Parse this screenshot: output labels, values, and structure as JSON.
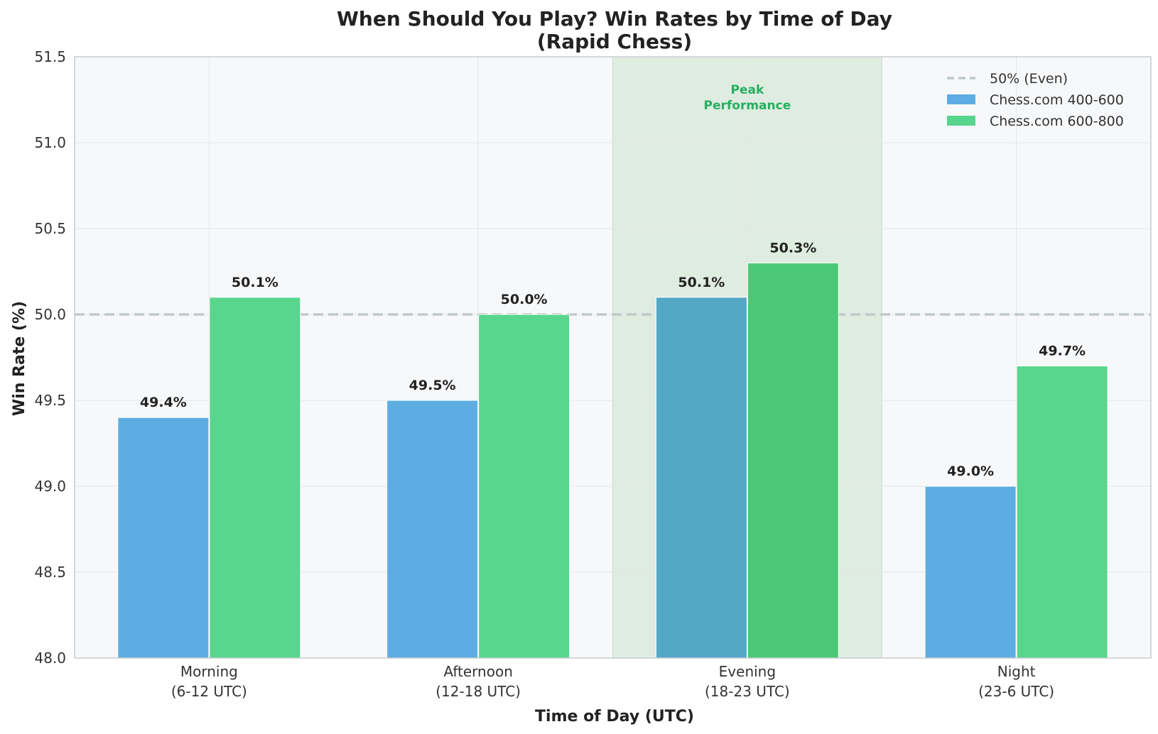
{
  "chart_data": {
    "type": "bar",
    "title": "When Should You Play? Win Rates by Time of Day",
    "subtitle": "(Rapid Chess)",
    "xlabel": "Time of Day (UTC)",
    "ylabel": "Win Rate (%)",
    "ylim": [
      48.0,
      51.5
    ],
    "yticks": [
      "48.0",
      "48.5",
      "49.0",
      "49.5",
      "50.0",
      "50.5",
      "51.0",
      "51.5"
    ],
    "categories": [
      {
        "name": "Morning",
        "range": "(6-12 UTC)"
      },
      {
        "name": "Afternoon",
        "range": "(12-18 UTC)"
      },
      {
        "name": "Evening",
        "range": "(18-23 UTC)"
      },
      {
        "name": "Night",
        "range": "(23-6 UTC)"
      }
    ],
    "series": [
      {
        "name": "Chess.com 400-600",
        "color": "#5DADE2",
        "highlight_color": "#52A8C5",
        "values": [
          49.4,
          49.5,
          50.1,
          49.0
        ],
        "labels": [
          "49.4%",
          "49.5%",
          "50.1%",
          "49.0%"
        ]
      },
      {
        "name": "Chess.com 600-800",
        "color": "#58D68D",
        "highlight_color": "#4CC978",
        "values": [
          50.1,
          50.0,
          50.3,
          49.7
        ],
        "labels": [
          "50.1%",
          "50.0%",
          "50.3%",
          "49.7%"
        ]
      }
    ],
    "reference_line": {
      "value": 50.0,
      "label": "50% (Even)",
      "color": "#BFC9CA",
      "style": "dashed"
    },
    "highlight": {
      "category_index": 2,
      "label_line1": "Peak",
      "label_line2": "Performance",
      "text_color": "#27AE60",
      "fill_color": "#DFECE0"
    },
    "legend_position": "top-right",
    "grid": true,
    "background_color": "#F7F8FA"
  }
}
